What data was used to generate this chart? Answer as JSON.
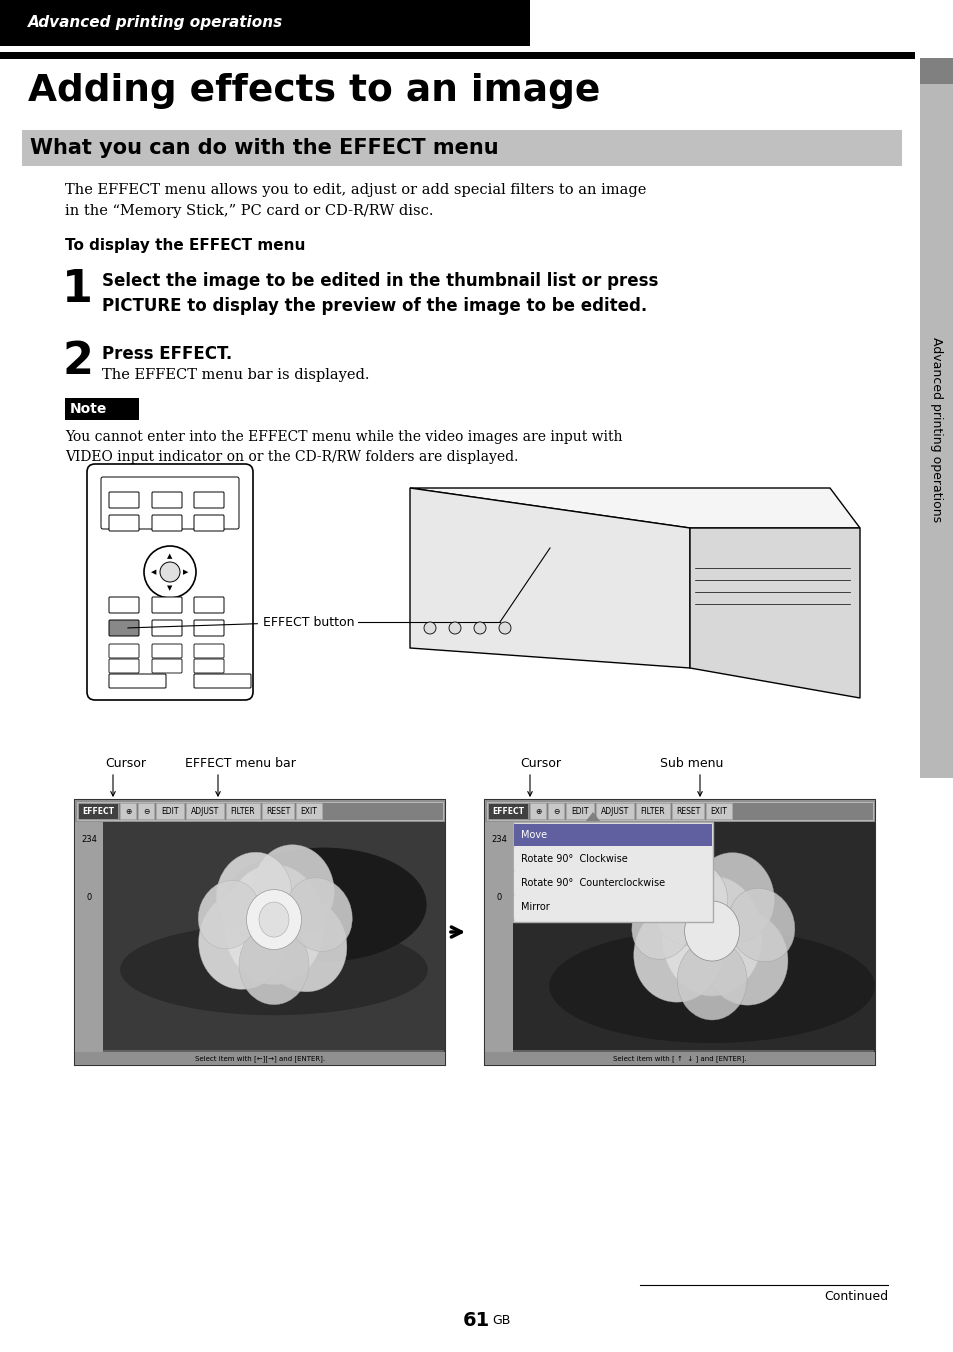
{
  "page_bg": "#ffffff",
  "header_bg": "#000000",
  "header_text": "Advanced printing operations",
  "header_text_color": "#ffffff",
  "title": "Adding effects to an image",
  "section_bg": "#c0c0c0",
  "section_title": "What you can do with the EFFECT menu",
  "body_text1": "The EFFECT menu allows you to edit, adjust or add special filters to an image\nin the “Memory Stick,” PC card or CD-R/RW disc.",
  "bold_text1": "To display the EFFECT menu",
  "step1_num": "1",
  "step1_text": "Select the image to be edited in the thumbnail list or press\nPICTURE to display the preview of the image to be edited.",
  "step2_num": "2",
  "step2_bold": "Press EFFECT.",
  "step2_text": "The EFFECT menu bar is displayed.",
  "note_bg": "#000000",
  "note_text": "Note",
  "note_text_color": "#ffffff",
  "note_body": "You cannot enter into the EFFECT menu while the video images are input with\nVIDEO input indicator on or the CD-R/RW folders are displayed.",
  "label_cursor1": "Cursor",
  "label_effectbar": "EFFECT menu bar",
  "label_cursor2": "Cursor",
  "label_submenu": "Sub menu",
  "label_effectbutton": "EFFECT button",
  "sidebar_text": "Advanced printing operations",
  "sidebar_bg": "#b8b8b8",
  "sidebar_dark": "#808080",
  "continued_text": "Continued",
  "page_num": "61",
  "page_num_suffix": "GB",
  "sub_menu_items": [
    "Move",
    "Rotate 90°  Clockwise",
    "Rotate 90°  Counterclockwise",
    "Mirror"
  ],
  "bottom_text_left": "Select item with [←][→] and [ENTER].",
  "bottom_text_right": "Select item with [ ↑  ↓ ] and [ENTER]."
}
